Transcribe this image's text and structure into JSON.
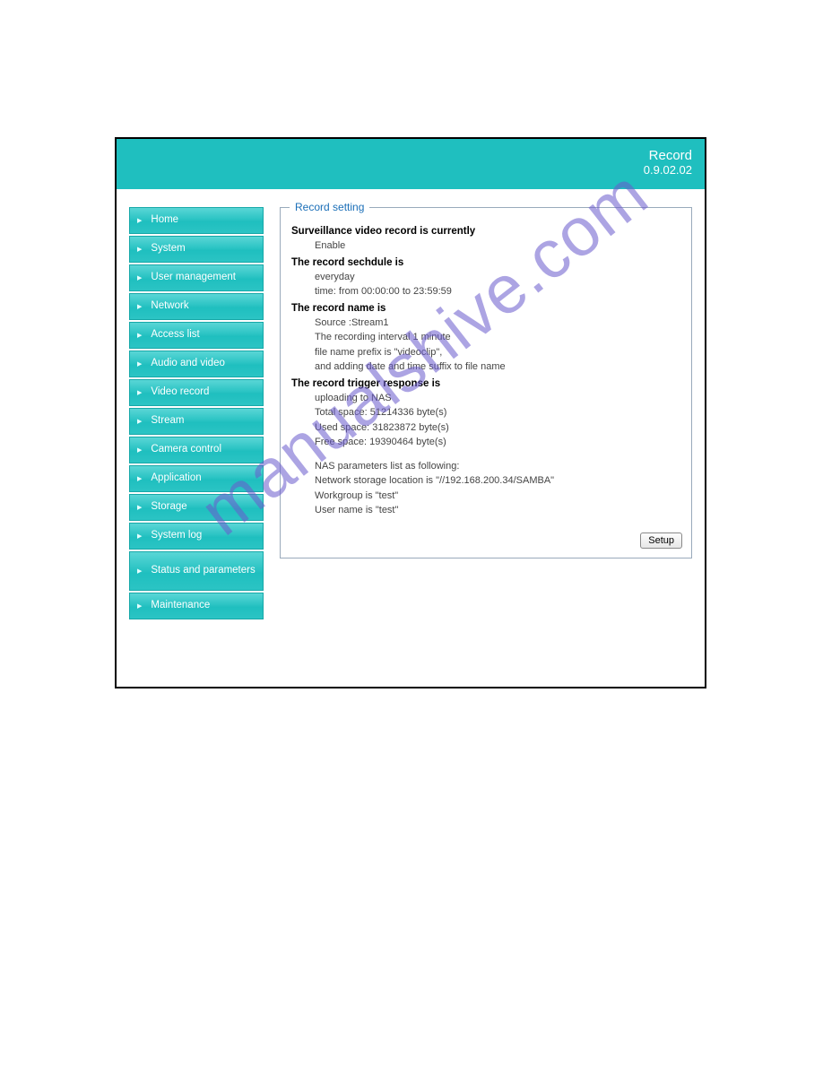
{
  "header": {
    "title": "Record",
    "version": "0.9.02.02"
  },
  "sidebar": {
    "items": [
      {
        "label": "Home",
        "name": "nav-home"
      },
      {
        "label": "System",
        "name": "nav-system"
      },
      {
        "label": "User management",
        "name": "nav-user-management"
      },
      {
        "label": "Network",
        "name": "nav-network"
      },
      {
        "label": "Access list",
        "name": "nav-access-list"
      },
      {
        "label": "Audio and video",
        "name": "nav-audio-video"
      },
      {
        "label": "Video record",
        "name": "nav-video-record"
      },
      {
        "label": "Stream",
        "name": "nav-stream"
      },
      {
        "label": "Camera control",
        "name": "nav-camera-control"
      },
      {
        "label": "Application",
        "name": "nav-application"
      },
      {
        "label": "Storage",
        "name": "nav-storage"
      },
      {
        "label": "System log",
        "name": "nav-system-log"
      },
      {
        "label": "Status and parameters",
        "name": "nav-status-parameters",
        "tall": true
      },
      {
        "label": "Maintenance",
        "name": "nav-maintenance"
      }
    ]
  },
  "panel": {
    "legend": "Record setting",
    "sections": {
      "s1_head": "Surveillance video record is currently",
      "s1_l1": "Enable",
      "s2_head": "The record sechdule is",
      "s2_l1": "everyday",
      "s2_l2": "time: from 00:00:00 to 23:59:59",
      "s3_head": "The record name is",
      "s3_l1": "Source :Stream1",
      "s3_l2": "The recording interval 1 minute",
      "s3_l3": "file name prefix is \"videoclip\",",
      "s3_l4": "and adding date and time suffix to file name",
      "s4_head": "The record trigger response is",
      "s4_l1": "uploading to NAS",
      "s4_l2": "Total space: 51214336 byte(s)",
      "s4_l3": "Used space: 31823872 byte(s)",
      "s4_l4": "Free space: 19390464 byte(s)",
      "s4_l5": "NAS parameters list as following:",
      "s4_l6": "Network storage location is \"//192.168.200.34/SAMBA\"",
      "s4_l7": "Workgroup is \"test\"",
      "s4_l8": "User name is \"test\""
    },
    "setup_button": "Setup"
  },
  "watermark": "manualshive.com",
  "colors": {
    "header_bg": "#1fbfbf",
    "nav_grad_top": "#5ad6d6",
    "nav_grad_mid": "#2bc4c4",
    "nav_border": "#16a8a8",
    "legend_color": "#1b6fb8",
    "fieldset_border": "#9ab",
    "watermark_color": "#6a5acd"
  }
}
